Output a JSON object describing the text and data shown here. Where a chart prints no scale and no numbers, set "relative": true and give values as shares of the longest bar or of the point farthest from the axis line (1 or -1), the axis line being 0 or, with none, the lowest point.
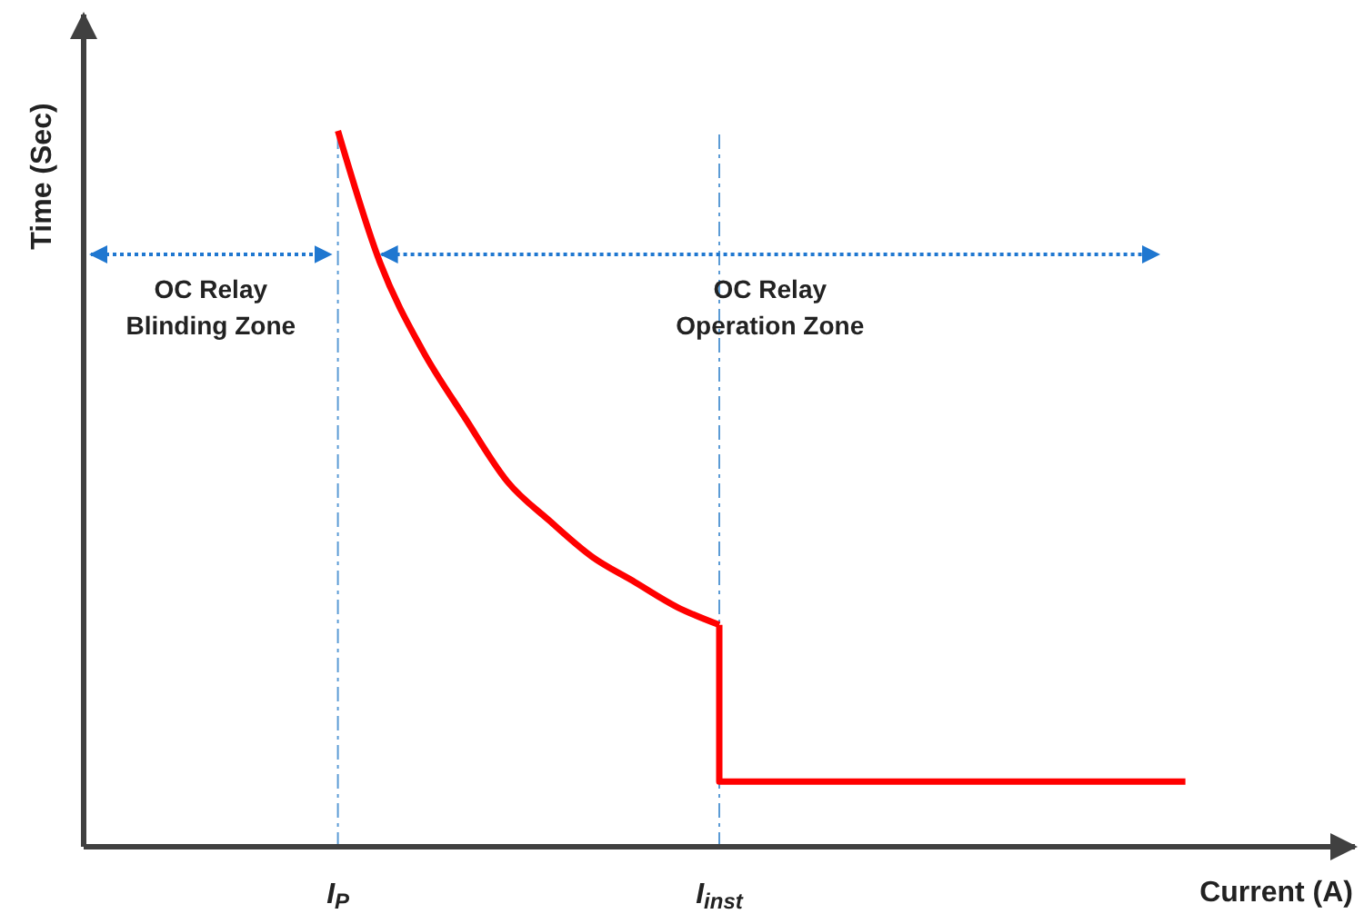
{
  "chart_data": {
    "type": "line",
    "relative": true,
    "xlabel": "Current (A)",
    "ylabel": "Time (Sec)",
    "categories": [
      null,
      null,
      null,
      null,
      null,
      "I$_{P}$",
      null,
      null,
      null,
      null,
      null,
      null,
      null,
      null,
      "I$_{inst}$",
      null,
      null,
      null,
      null,
      null,
      null,
      null,
      null,
      null,
      null,
      null
    ],
    "series": [
      {
        "color": "#ff0000",
        "values": [
          null,
          null,
          null,
          null,
          null,
          1,
          0.815,
          0.693,
          0.599,
          0.51,
          0.455,
          0.405,
          0.37,
          0.335,
          0.31,
          null,
          null,
          null,
          null,
          null,
          null,
          null,
          null,
          null,
          null,
          null
        ]
      },
      {
        "type": "step",
        "color": "#ff0000",
        "values": [
          null,
          null,
          null,
          null,
          null,
          null,
          null,
          null,
          null,
          null,
          null,
          null,
          null,
          null,
          0.31,
          0.091,
          0.091,
          0.091,
          0.091,
          0.091,
          0.091,
          0.091,
          0.091,
          0.091,
          0.091,
          0.091
        ]
      }
    ],
    "annotations": [
      "OC Relay\nBlinding Zone",
      "OC Relay\nOperation Zone"
    ],
    "grid": "x",
    "marker": "none",
    "line_style": "solid"
  }
}
